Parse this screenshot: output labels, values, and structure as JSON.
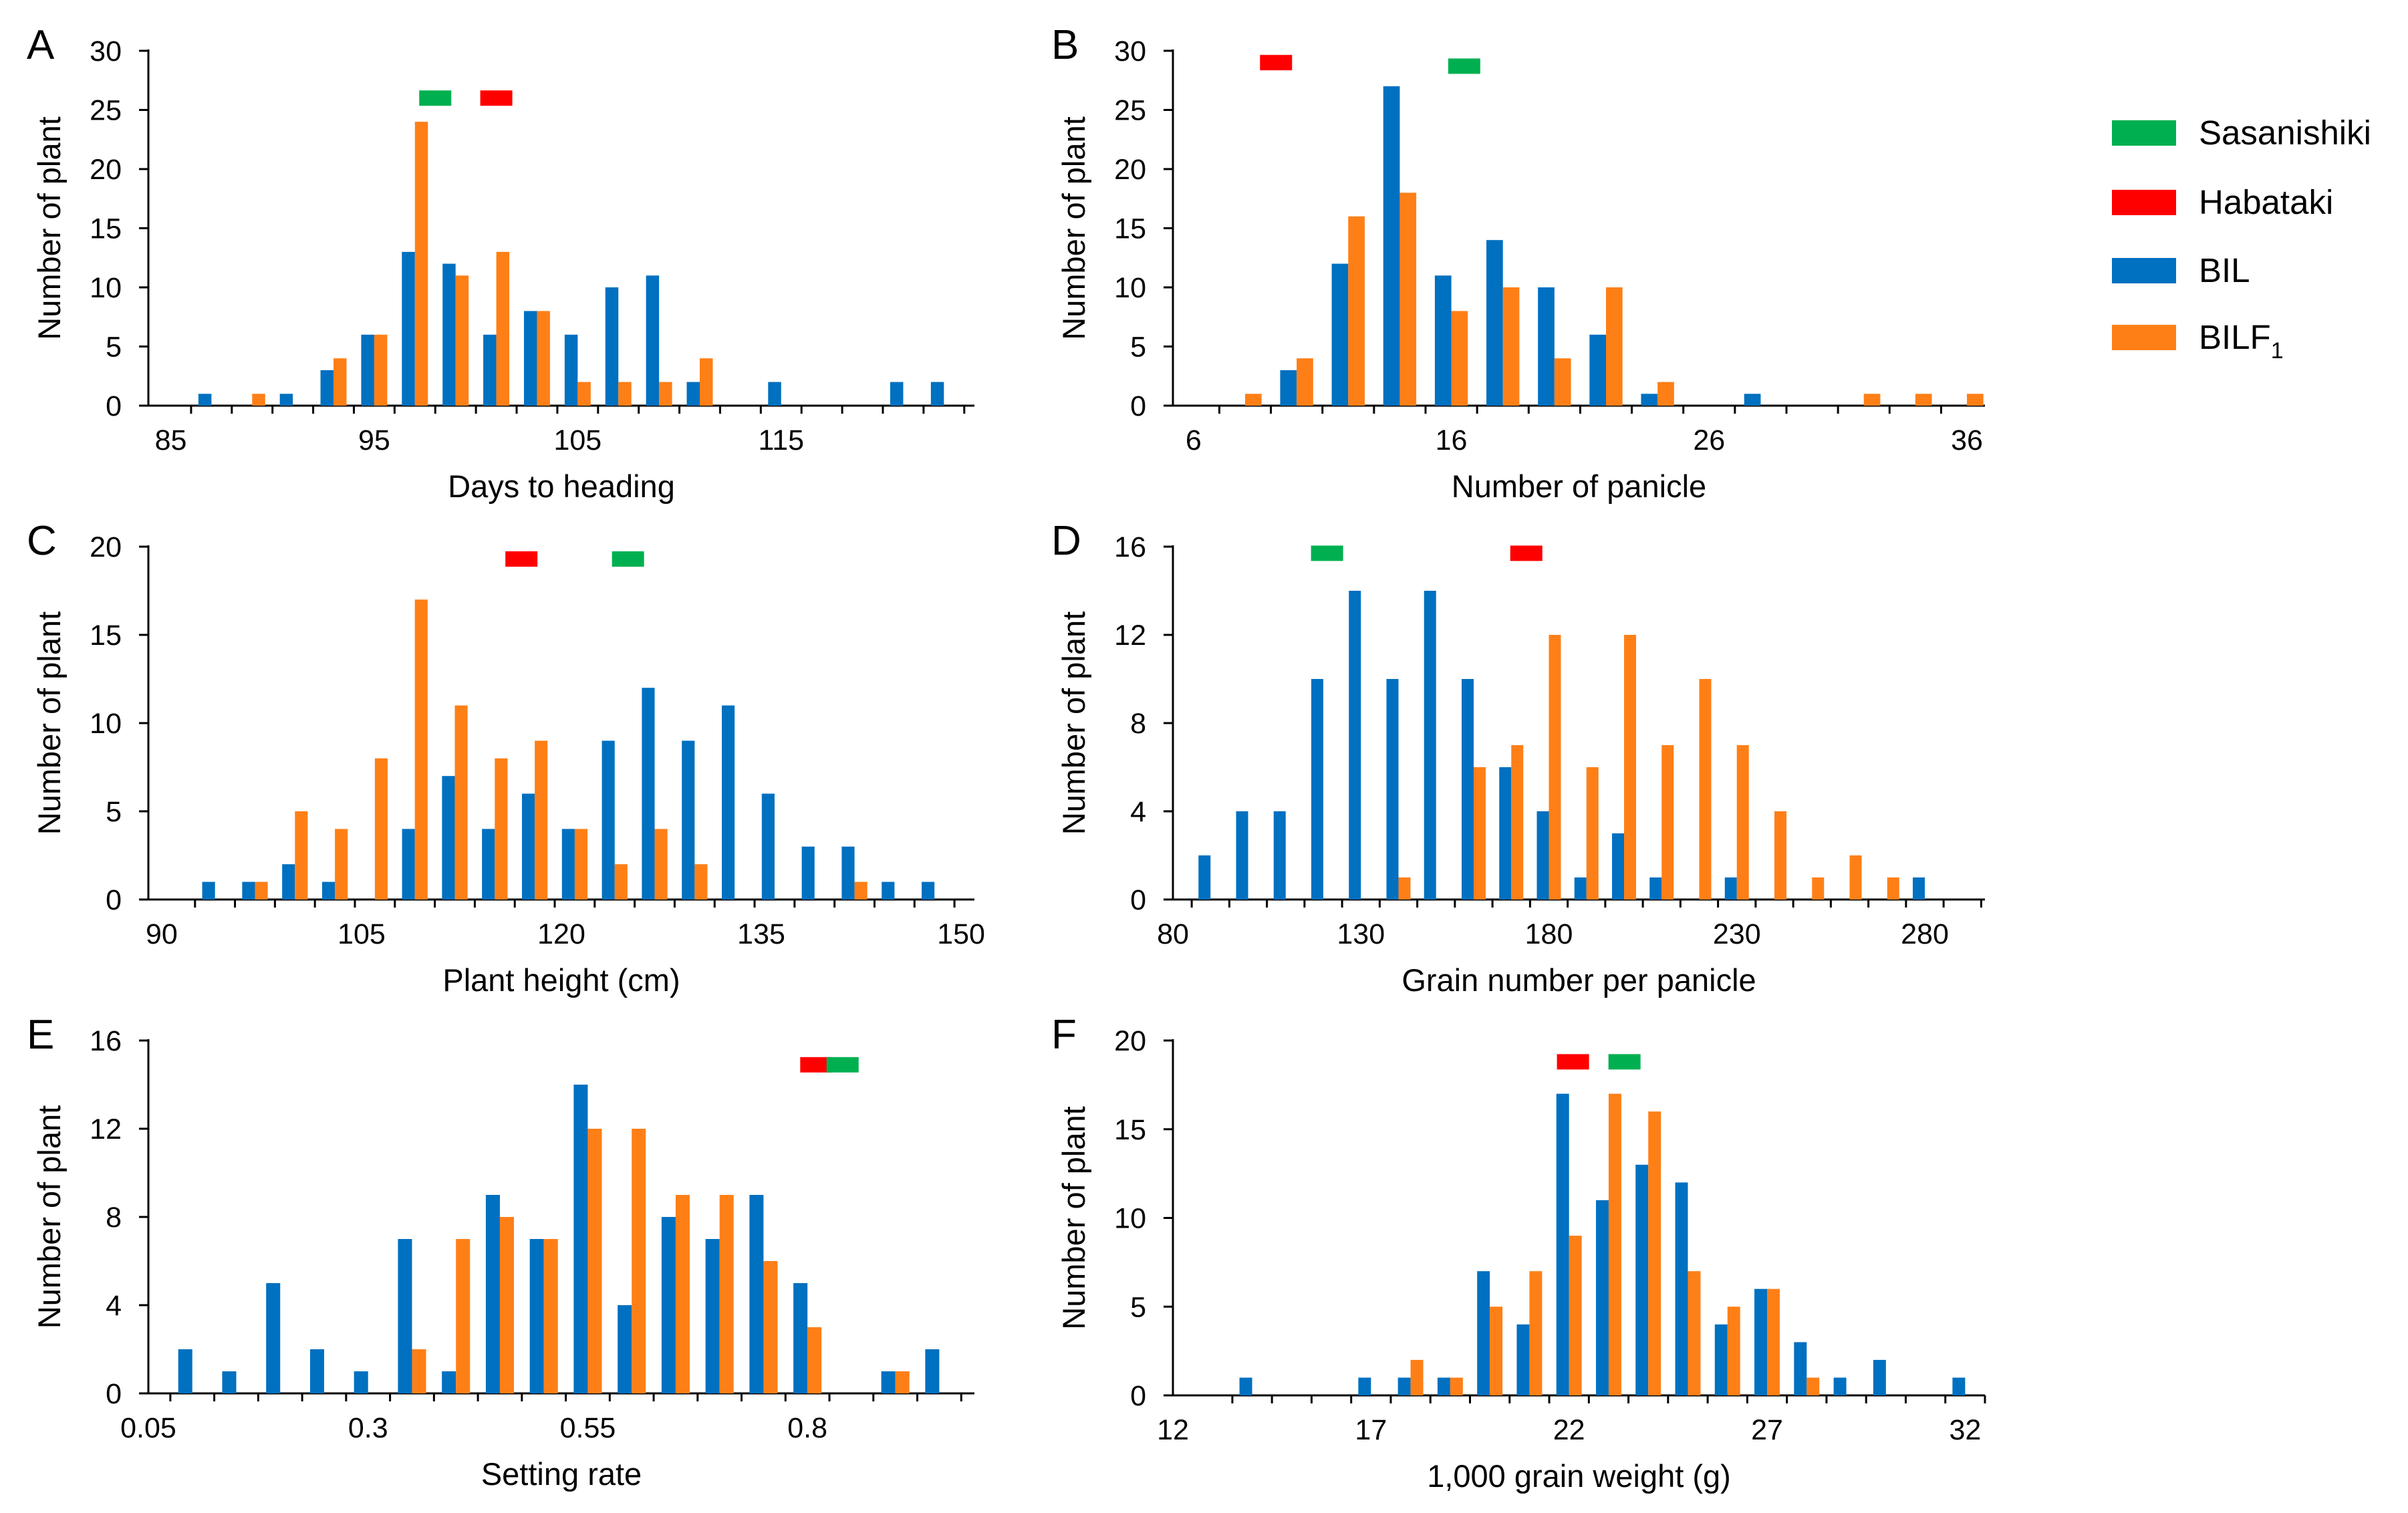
{
  "colors": {
    "BIL": "#0070C0",
    "BILF1": "#FF7F17",
    "Sasanishiki": "#00B050",
    "Habataki": "#FF0000",
    "axis": "#000000"
  },
  "legend": {
    "items": [
      {
        "key": "Sasanishiki",
        "label": "Sasanishiki"
      },
      {
        "key": "Habataki",
        "label": "Habataki"
      },
      {
        "key": "BIL",
        "label": "BIL"
      },
      {
        "key": "BILF1",
        "label": "BILF",
        "sub": "1"
      }
    ]
  },
  "chart_data": [
    {
      "panel": "A",
      "type": "bar",
      "xlabel": "Days to heading",
      "ylabel": "Number of plant",
      "xlim": [
        85,
        125
      ],
      "xticks": [
        "85",
        "95",
        "105",
        "115"
      ],
      "ylim": [
        0,
        30
      ],
      "yticks": [
        "0",
        "5",
        "10",
        "15",
        "20",
        "25",
        "30"
      ],
      "bin_width": 2,
      "series": [
        {
          "name": "BIL",
          "x": [
            87,
            89,
            91,
            93,
            95,
            97,
            99,
            101,
            103,
            105,
            107,
            109,
            111,
            113,
            115,
            117,
            119,
            121,
            123
          ],
          "values": [
            1,
            0,
            1,
            3,
            6,
            13,
            12,
            6,
            8,
            6,
            10,
            11,
            2,
            0,
            2,
            0,
            0,
            2,
            2
          ]
        },
        {
          "name": "BILF1",
          "x": [
            87,
            89,
            91,
            93,
            95,
            97,
            99,
            101,
            103,
            105,
            107,
            109,
            111,
            113,
            115,
            117,
            119,
            121,
            123
          ],
          "values": [
            0,
            1,
            0,
            4,
            6,
            24,
            11,
            13,
            8,
            2,
            2,
            2,
            4,
            0,
            0,
            0,
            0,
            0,
            0
          ]
        }
      ],
      "markers": [
        {
          "name": "Sasanishiki",
          "x": 98,
          "y": 26
        },
        {
          "name": "Habataki",
          "x": 101,
          "y": 26
        }
      ]
    },
    {
      "panel": "B",
      "type": "bar",
      "xlabel": "Number of panicle",
      "ylabel": "Number of plant",
      "xlim": [
        6,
        37
      ],
      "xticks": [
        "6",
        "16",
        "26",
        "36"
      ],
      "ylim": [
        0,
        30
      ],
      "yticks": [
        "0",
        "5",
        "10",
        "15",
        "20",
        "25",
        "30"
      ],
      "bin_width": 2,
      "series": [
        {
          "name": "BIL",
          "x": [
            8,
            10,
            12,
            14,
            16,
            18,
            20,
            22,
            24,
            26,
            28,
            30,
            32,
            34,
            36
          ],
          "values": [
            0,
            3,
            12,
            27,
            11,
            14,
            10,
            6,
            1,
            0,
            1,
            0,
            0,
            0,
            0
          ]
        },
        {
          "name": "BILF1",
          "x": [
            8,
            10,
            12,
            14,
            16,
            18,
            20,
            22,
            24,
            26,
            28,
            30,
            32,
            34,
            36
          ],
          "values": [
            1,
            4,
            16,
            18,
            8,
            10,
            4,
            10,
            2,
            0,
            0,
            0,
            1,
            1,
            1
          ]
        }
      ],
      "markers": [
        {
          "name": "Habataki",
          "x": 9.2,
          "y": 29
        },
        {
          "name": "Sasanishiki",
          "x": 16.5,
          "y": 28.7
        }
      ]
    },
    {
      "panel": "C",
      "type": "bar",
      "xlabel": "Plant height (cm)",
      "ylabel": "Number of plant",
      "xlim": [
        90,
        151
      ],
      "xticks": [
        "90",
        "105",
        "120",
        "135",
        "150"
      ],
      "ylim": [
        0,
        20
      ],
      "yticks": [
        "0",
        "5",
        "10",
        "15",
        "20"
      ],
      "bin_width": 3,
      "series": [
        {
          "name": "BIL",
          "x": [
            94,
            97,
            100,
            103,
            106,
            109,
            112,
            115,
            118,
            121,
            124,
            127,
            130,
            133,
            136,
            139,
            142,
            145,
            148
          ],
          "values": [
            1,
            1,
            2,
            1,
            0,
            4,
            7,
            4,
            6,
            4,
            9,
            12,
            9,
            11,
            6,
            3,
            3,
            1,
            1
          ]
        },
        {
          "name": "BILF1",
          "x": [
            94,
            97,
            100,
            103,
            106,
            109,
            112,
            115,
            118,
            121,
            124,
            127,
            130,
            133,
            136,
            139,
            142,
            145,
            148
          ],
          "values": [
            0,
            1,
            5,
            4,
            8,
            17,
            11,
            8,
            9,
            4,
            2,
            4,
            2,
            0,
            0,
            0,
            1,
            0,
            0
          ]
        }
      ],
      "markers": [
        {
          "name": "Habataki",
          "x": 117,
          "y": 19.3
        },
        {
          "name": "Sasanishiki",
          "x": 125,
          "y": 19.3
        }
      ]
    },
    {
      "panel": "D",
      "type": "bar",
      "xlabel": "Grain number per panicle",
      "ylabel": "Number of plant",
      "xlim": [
        80,
        295
      ],
      "xticks": [
        "80",
        "130",
        "180",
        "230",
        "280"
      ],
      "ylim": [
        0,
        16
      ],
      "yticks": [
        "0",
        "4",
        "8",
        "12",
        "16"
      ],
      "bin_width": 10,
      "series": [
        {
          "name": "BIL",
          "x": [
            90,
            100,
            110,
            120,
            130,
            140,
            150,
            160,
            170,
            180,
            190,
            200,
            210,
            220,
            230,
            240,
            250,
            260,
            270,
            280
          ],
          "values": [
            2,
            4,
            4,
            10,
            14,
            10,
            14,
            10,
            6,
            4,
            1,
            3,
            1,
            0,
            1,
            0,
            0,
            0,
            0,
            1
          ]
        },
        {
          "name": "BILF1",
          "x": [
            90,
            100,
            110,
            120,
            130,
            140,
            150,
            160,
            170,
            180,
            190,
            200,
            210,
            220,
            230,
            240,
            250,
            260,
            270,
            280
          ],
          "values": [
            0,
            0,
            0,
            0,
            0,
            1,
            0,
            6,
            7,
            12,
            6,
            12,
            7,
            10,
            7,
            4,
            1,
            2,
            1,
            0
          ]
        }
      ],
      "markers": [
        {
          "name": "Sasanishiki",
          "x": 121,
          "y": 15.7
        },
        {
          "name": "Habataki",
          "x": 174,
          "y": 15.7
        }
      ]
    },
    {
      "panel": "E",
      "type": "bar",
      "xlabel": "Setting rate",
      "ylabel": "Number of plant",
      "xlim": [
        0.05,
        1.0
      ],
      "xticks": [
        "0.05",
        "0.3",
        "0.55",
        "0.8"
      ],
      "ylim": [
        0,
        16
      ],
      "yticks": [
        "0",
        "4",
        "8",
        "12",
        "16"
      ],
      "bin_width": 0.05,
      "series": [
        {
          "name": "BIL",
          "x": [
            0.1,
            0.15,
            0.2,
            0.25,
            0.3,
            0.35,
            0.4,
            0.45,
            0.5,
            0.55,
            0.6,
            0.65,
            0.7,
            0.75,
            0.8,
            0.85,
            0.9,
            0.95
          ],
          "values": [
            2,
            1,
            5,
            2,
            1,
            7,
            1,
            9,
            7,
            14,
            4,
            8,
            7,
            9,
            5,
            0,
            1,
            2
          ]
        },
        {
          "name": "BILF1",
          "x": [
            0.1,
            0.15,
            0.2,
            0.25,
            0.3,
            0.35,
            0.4,
            0.45,
            0.5,
            0.55,
            0.6,
            0.65,
            0.7,
            0.75,
            0.8,
            0.85,
            0.9,
            0.95
          ],
          "values": [
            0,
            0,
            0,
            0,
            0,
            2,
            7,
            8,
            7,
            12,
            12,
            9,
            9,
            6,
            3,
            0,
            1,
            0
          ]
        }
      ],
      "markers": [
        {
          "name": "Habataki",
          "x": 0.81,
          "y": 14.9
        },
        {
          "name": "Sasanishiki",
          "x": 0.84,
          "y": 14.9
        }
      ]
    },
    {
      "panel": "F",
      "type": "bar",
      "xlabel": "1,000 grain weight (g)",
      "ylabel": "Number of plant",
      "xlim": [
        12,
        32.5
      ],
      "xticks": [
        "12",
        "17",
        "22",
        "27",
        "32"
      ],
      "ylim": [
        0,
        20
      ],
      "yticks": [
        "0",
        "5",
        "10",
        "15",
        "20"
      ],
      "bin_width": 1,
      "series": [
        {
          "name": "BIL",
          "x": [
            14,
            15,
            16,
            17,
            18,
            19,
            20,
            21,
            22,
            23,
            24,
            25,
            26,
            27,
            28,
            29,
            30,
            31,
            32
          ],
          "values": [
            1,
            0,
            0,
            1,
            1,
            1,
            7,
            4,
            17,
            11,
            13,
            12,
            4,
            6,
            3,
            1,
            2,
            0,
            1
          ]
        },
        {
          "name": "BILF1",
          "x": [
            14,
            15,
            16,
            17,
            18,
            19,
            20,
            21,
            22,
            23,
            24,
            25,
            26,
            27,
            28,
            29,
            30,
            31,
            32
          ],
          "values": [
            0,
            0,
            0,
            0,
            2,
            1,
            5,
            7,
            9,
            17,
            16,
            7,
            5,
            6,
            1,
            0,
            0,
            0,
            0
          ]
        }
      ],
      "markers": [
        {
          "name": "Habataki",
          "x": 22.1,
          "y": 18.8
        },
        {
          "name": "Sasanishiki",
          "x": 23.4,
          "y": 18.8
        }
      ]
    }
  ]
}
